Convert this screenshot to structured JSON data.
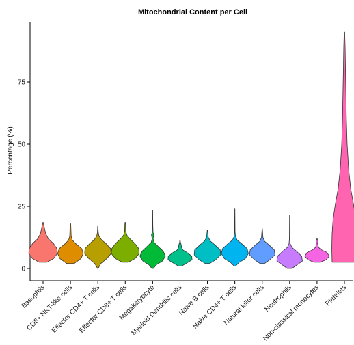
{
  "chart_data": {
    "type": "violin",
    "title": "Mitochondrial Content per Cell",
    "xlabel": "",
    "ylabel": "Percentage (%)",
    "ylim": [
      -2,
      100
    ],
    "yticks": [
      0,
      25,
      50,
      75
    ],
    "grid": false,
    "legend": "none",
    "categories": [
      "Basophils",
      "CD8+ NKT-like cells",
      "Effector CD4+ T cells",
      "Effector CD8+ T cells",
      "Megakaryocyte",
      "Myeloid Dendritic cells",
      "Naive B cells",
      "Naive CD4+ T cells",
      "Natural killer  cells",
      "Neutrophils",
      "Non-classical monocytes",
      "Platelets"
    ],
    "series": [
      {
        "category": "Basophils",
        "color": "#F8766D",
        "min": 2.5,
        "max": 18.5,
        "mode": 7,
        "width": 0.95,
        "profile": [
          [
            2.5,
            0.25
          ],
          [
            4,
            0.7
          ],
          [
            6,
            0.95
          ],
          [
            8,
            0.92
          ],
          [
            10,
            0.7
          ],
          [
            12,
            0.35
          ],
          [
            14,
            0.18
          ],
          [
            15.5,
            0.12
          ],
          [
            17,
            0.06
          ],
          [
            18.5,
            0.02
          ]
        ]
      },
      {
        "category": "CD8+ NKT-like cells",
        "color": "#DE8C00",
        "min": 2,
        "max": 18,
        "mode": 6.5,
        "width": 0.85,
        "profile": [
          [
            2,
            0.25
          ],
          [
            4,
            0.7
          ],
          [
            6,
            0.85
          ],
          [
            8,
            0.75
          ],
          [
            10,
            0.35
          ],
          [
            11.5,
            0.12
          ],
          [
            13,
            0.05
          ],
          [
            18,
            0.02
          ]
        ]
      },
      {
        "category": "Effector CD4+ T cells",
        "color": "#B79F00",
        "min": 0,
        "max": 17,
        "mode": 7,
        "width": 0.9,
        "profile": [
          [
            0,
            0.02
          ],
          [
            2,
            0.2
          ],
          [
            4,
            0.6
          ],
          [
            6,
            0.88
          ],
          [
            8,
            0.85
          ],
          [
            10,
            0.55
          ],
          [
            11.5,
            0.25
          ],
          [
            13,
            0.08
          ],
          [
            14.5,
            0.03
          ],
          [
            17,
            0.01
          ]
        ]
      },
      {
        "category": "Effector CD8+ T cells",
        "color": "#7CAE00",
        "min": 2.5,
        "max": 18.5,
        "mode": 7,
        "width": 0.95,
        "profile": [
          [
            2.5,
            0.2
          ],
          [
            4,
            0.65
          ],
          [
            6,
            0.93
          ],
          [
            8,
            0.9
          ],
          [
            10,
            0.65
          ],
          [
            12,
            0.3
          ],
          [
            13.5,
            0.1
          ],
          [
            15,
            0.04
          ],
          [
            18.5,
            0.02
          ]
        ]
      },
      {
        "category": "Megakaryocyte",
        "color": "#00BA38",
        "min": 0,
        "max": 23.5,
        "mode": 5,
        "width": 0.85,
        "profile": [
          [
            0,
            0.05
          ],
          [
            1.5,
            0.25
          ],
          [
            3,
            0.65
          ],
          [
            5,
            0.85
          ],
          [
            7,
            0.7
          ],
          [
            9,
            0.35
          ],
          [
            10.5,
            0.1
          ],
          [
            12,
            0.03
          ],
          [
            13.5,
            0.08
          ],
          [
            14.5,
            0.03
          ],
          [
            17,
            0.015
          ],
          [
            23.5,
            0.005
          ]
        ]
      },
      {
        "category": "Myeloid Dendritic cells",
        "color": "#00C08B",
        "min": 1,
        "max": 11.5,
        "mode": 4,
        "width": 0.8,
        "profile": [
          [
            1,
            0.1
          ],
          [
            2,
            0.4
          ],
          [
            3.5,
            0.8
          ],
          [
            5,
            0.78
          ],
          [
            6.5,
            0.45
          ],
          [
            7.5,
            0.18
          ],
          [
            8.5,
            0.1
          ],
          [
            9.5,
            0.08
          ],
          [
            10.5,
            0.03
          ],
          [
            11.5,
            0.01
          ]
        ]
      },
      {
        "category": "Naive B cells",
        "color": "#00BFC4",
        "min": 2,
        "max": 15.5,
        "mode": 6,
        "width": 0.9,
        "profile": [
          [
            2,
            0.15
          ],
          [
            3.5,
            0.55
          ],
          [
            5.5,
            0.88
          ],
          [
            7.5,
            0.85
          ],
          [
            9.5,
            0.5
          ],
          [
            11,
            0.2
          ],
          [
            12.5,
            0.06
          ],
          [
            15.5,
            0.01
          ]
        ]
      },
      {
        "category": "Naive CD4+ T cells",
        "color": "#00B4F0",
        "min": 1,
        "max": 24,
        "mode": 6,
        "width": 0.9,
        "profile": [
          [
            1,
            0.05
          ],
          [
            2.5,
            0.3
          ],
          [
            4,
            0.7
          ],
          [
            6,
            0.9
          ],
          [
            8,
            0.82
          ],
          [
            10,
            0.45
          ],
          [
            11.5,
            0.15
          ],
          [
            13,
            0.04
          ],
          [
            15,
            0.015
          ],
          [
            24,
            0.005
          ]
        ]
      },
      {
        "category": "Natural killer  cells",
        "color": "#619CFF",
        "min": 2,
        "max": 16,
        "mode": 6,
        "width": 0.85,
        "profile": [
          [
            2,
            0.15
          ],
          [
            3.5,
            0.5
          ],
          [
            5.5,
            0.85
          ],
          [
            7.5,
            0.8
          ],
          [
            9.5,
            0.45
          ],
          [
            11,
            0.15
          ],
          [
            12.5,
            0.05
          ],
          [
            16,
            0.01
          ]
        ]
      },
      {
        "category": "Neutrophils",
        "color": "#C77CFF",
        "min": 0,
        "max": 21.5,
        "mode": 4,
        "width": 0.9,
        "profile": [
          [
            0,
            0.15
          ],
          [
            1.5,
            0.5
          ],
          [
            3,
            0.85
          ],
          [
            5,
            0.8
          ],
          [
            7,
            0.45
          ],
          [
            8.5,
            0.15
          ],
          [
            10,
            0.04
          ],
          [
            12,
            0.015
          ],
          [
            21.5,
            0.005
          ]
        ]
      },
      {
        "category": "Non-classical monocytes",
        "color": "#F564E3",
        "min": 2.5,
        "max": 12,
        "mode": 4.5,
        "width": 0.85,
        "profile": [
          [
            2.5,
            0.2
          ],
          [
            3.5,
            0.6
          ],
          [
            5,
            0.82
          ],
          [
            6.5,
            0.65
          ],
          [
            7.5,
            0.3
          ],
          [
            8.5,
            0.1
          ],
          [
            10,
            0.04
          ],
          [
            11,
            0.06
          ],
          [
            12,
            0.01
          ]
        ]
      },
      {
        "category": "Platelets",
        "color": "#FF64B0",
        "min": 2.5,
        "max": 95,
        "mode": 20,
        "width": 0.85,
        "profile": [
          [
            2.5,
            0.82
          ],
          [
            8,
            0.84
          ],
          [
            14,
            0.82
          ],
          [
            20,
            0.75
          ],
          [
            26,
            0.6
          ],
          [
            32,
            0.42
          ],
          [
            40,
            0.28
          ],
          [
            50,
            0.18
          ],
          [
            60,
            0.13
          ],
          [
            70,
            0.1
          ],
          [
            80,
            0.07
          ],
          [
            88,
            0.05
          ],
          [
            95,
            0.02
          ]
        ]
      }
    ]
  }
}
